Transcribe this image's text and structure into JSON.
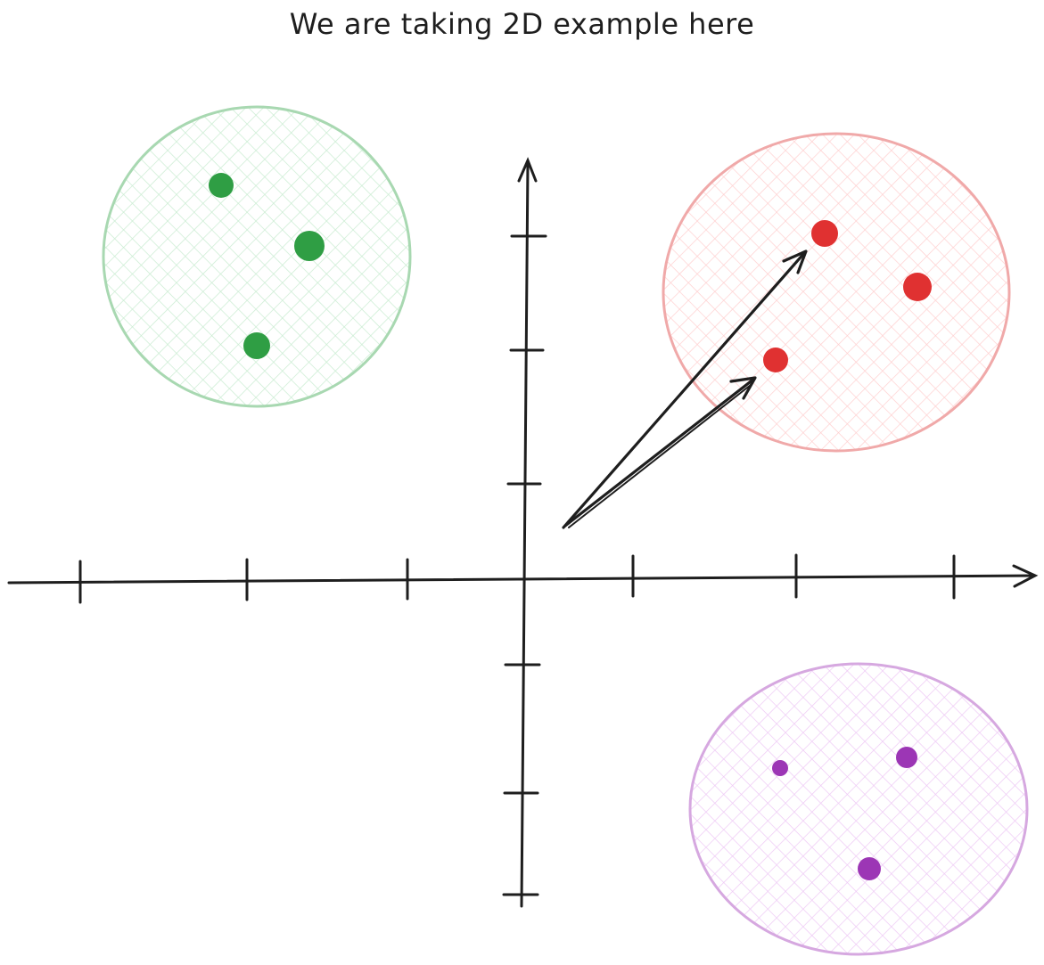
{
  "title": "We are taking 2D example here",
  "colors": {
    "ink": "#1e1e1e",
    "green_stroke": "#a8d8b1",
    "green_fill": "#d6f2dc",
    "green_dot": "#2f9e44",
    "red_stroke": "#f0a9a9",
    "red_fill": "#ffdede",
    "red_dot": "#e03131",
    "purple_stroke": "#d6a8e0",
    "purple_fill": "#f2d8f8",
    "purple_dot": "#9c36b5"
  },
  "clusters": [
    {
      "name": "green",
      "point_count": 3
    },
    {
      "name": "red",
      "point_count": 3
    },
    {
      "name": "purple",
      "point_count": 3
    }
  ],
  "vector_count": 2
}
